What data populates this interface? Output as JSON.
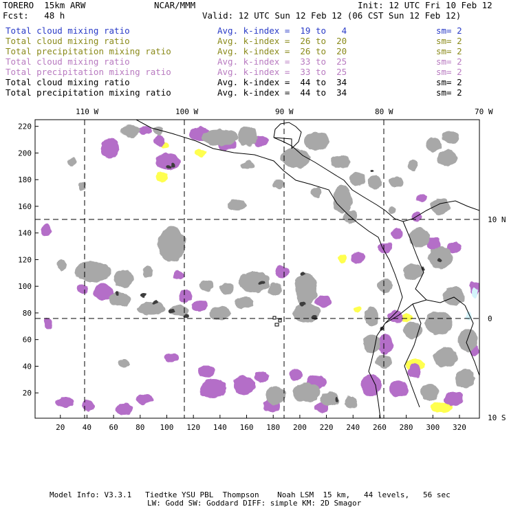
{
  "header": {
    "model": "TORERO  15km ARW",
    "center": "NCAR/MMM",
    "init": "Init: 12 UTC Fri 10 Feb 12",
    "fcst": "Fcst:   48 h",
    "valid": "Valid: 12 UTC Sun 12 Feb 12 (06 CST Sun 12 Feb 12)"
  },
  "legend": [
    {
      "field": "Total cloud mixing ratio",
      "kidx": "Avg. k-index =  19 to   4",
      "sm": "sm= 2",
      "color": "#2a3bc7"
    },
    {
      "field": "Total cloud mixing ratio",
      "kidx": "Avg. k-index =  26 to  20",
      "sm": "sm= 2",
      "color": "#8a8a1a"
    },
    {
      "field": "Total precipitation mixing ratio",
      "kidx": "Avg. k-index =  26 to  20",
      "sm": "sm= 2",
      "color": "#8a8a1a"
    },
    {
      "field": "Total cloud mixing ratio",
      "kidx": "Avg. k-index =  33 to  25",
      "sm": "sm= 2",
      "color": "#b87ac0"
    },
    {
      "field": "Total precipitation mixing ratio",
      "kidx": "Avg. k-index =  33 to  25",
      "sm": "sm= 2",
      "color": "#b87ac0"
    },
    {
      "field": "Total cloud mixing ratio",
      "kidx": "Avg. k-index =  44 to  34",
      "sm": "sm= 2",
      "color": "#000000"
    },
    {
      "field": "Total precipitation mixing ratio",
      "kidx": "Avg. k-index =  44 to  34",
      "sm": "sm= 2",
      "color": "#000000"
    }
  ],
  "chart_data": {
    "type": "heatmap",
    "x_ticks": [
      20,
      40,
      60,
      80,
      100,
      120,
      140,
      160,
      180,
      200,
      220,
      240,
      260,
      280,
      300,
      320
    ],
    "y_ticks": [
      20,
      40,
      60,
      80,
      100,
      120,
      140,
      160,
      180,
      200,
      220
    ],
    "xlim": [
      1,
      335
    ],
    "ylim": [
      1,
      225
    ],
    "lon_labels": [
      "110 W",
      "100 W",
      "90 W",
      "80 W",
      "70 W"
    ],
    "lat_labels": [
      "10 N",
      "0",
      "10 S"
    ],
    "grid": "dashed",
    "colors": {
      "grey": "#a8a8a8",
      "dark": "#3c3c3c",
      "purple": "#b46ec8",
      "yellow": "#ffff50",
      "cyan": "#d4f4fb"
    }
  },
  "footer": {
    "line1": "Model Info: V3.3.1   Tiedtke YSU PBL  Thompson    Noah LSM  15 km,   44 levels,   56 sec",
    "line2": "LW: Godd SW: Goddard DIFF: simple KM: 2D Smagor"
  }
}
